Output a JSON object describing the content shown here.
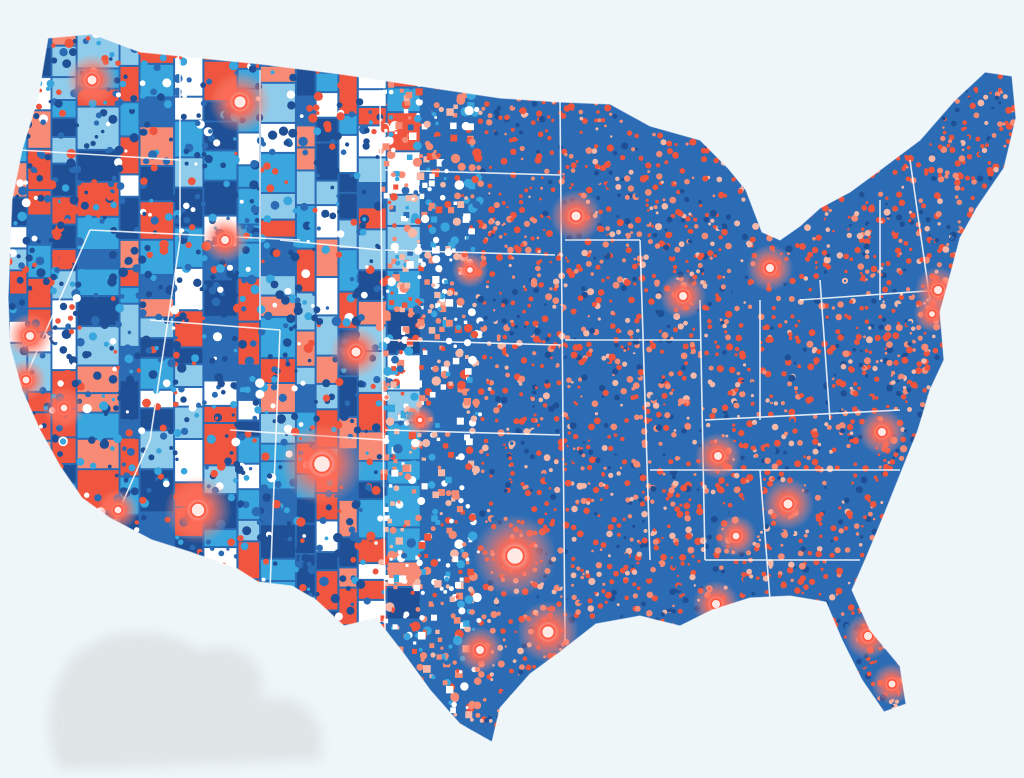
{
  "map": {
    "background_color": "#eef6fa",
    "palette": {
      "navy": "#1f4f95",
      "blue": "#2b6cb5",
      "sky": "#3aa6de",
      "light_blue": "#8fcbea",
      "pale": "#ffffff",
      "red": "#f0553f",
      "salmon": "#f78b75",
      "pink": "#f7b8a8",
      "glow": "#ff9a8a",
      "glow_core": "#ffe9e4",
      "boundary": "#ffffff",
      "shadow": "#d8dcdd"
    },
    "hotspot_count": 27
  }
}
